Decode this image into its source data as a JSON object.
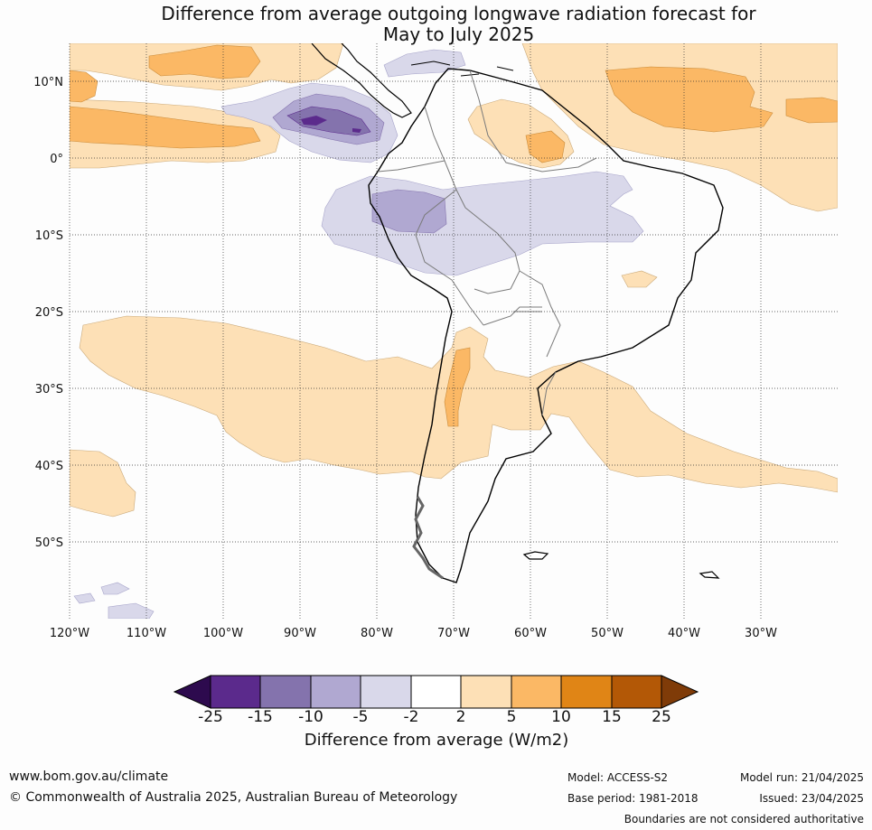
{
  "title": {
    "line1": "Difference from average outgoing longwave radiation forecast for",
    "line2": "May to July 2025"
  },
  "map": {
    "latitude_labels": [
      "10°N",
      "0°",
      "10°S",
      "20°S",
      "30°S",
      "40°S",
      "50°S"
    ],
    "longitude_labels": [
      "120°W",
      "110°W",
      "100°W",
      "90°W",
      "80°W",
      "70°W",
      "60°W",
      "50°W",
      "40°W",
      "30°W"
    ],
    "land_color": "#ffffff",
    "coast_color": "#000000",
    "border_color": "#7a7a7a"
  },
  "colorbar": {
    "title": "Difference from average (W/m2)",
    "tick_labels": [
      "-25",
      "-15",
      "-10",
      "-5",
      "-2",
      "2",
      "5",
      "10",
      "15",
      "25"
    ],
    "colors": [
      "#2d0a4e",
      "#5b2a8c",
      "#8473ad",
      "#b0a8d1",
      "#d9d8ea",
      "#ffffff",
      "#fde0b6",
      "#fbb865",
      "#e08516",
      "#b35806",
      "#7f3b08"
    ]
  },
  "footer": {
    "website": "www.bom.gov.au/climate",
    "copyright": "© Commonwealth of Australia 2025, Australian Bureau of Meteorology",
    "model": "Model: ACCESS-S2",
    "base_period": "Base period: 1981-2018",
    "model_run": "Model run: 21/04/2025",
    "issued": "Issued: 23/04/2025",
    "disclaimer": "Boundaries are not considered authoritative"
  }
}
